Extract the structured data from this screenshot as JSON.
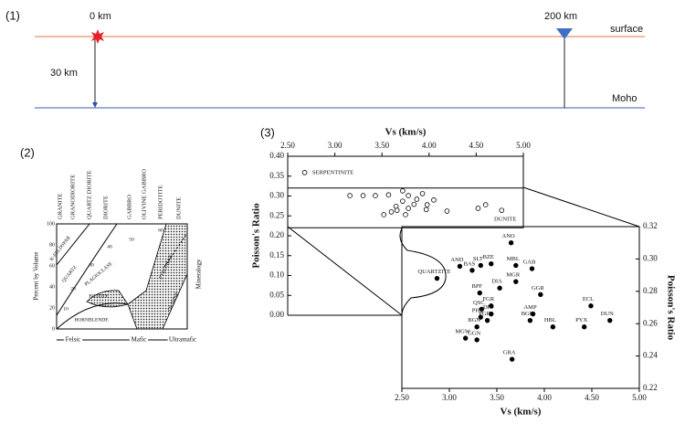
{
  "panel1": {
    "tag": "(1)",
    "source": "0 km",
    "station": "200 km",
    "surface": "surface",
    "depth": "30 km",
    "moho": "Moho"
  },
  "panel2": {
    "tag": "(2)",
    "rocks": [
      "GRANITE",
      "GRANODIORITE",
      "QUARTZ DIORITE",
      "DIORITE",
      "GABBRO",
      "OLIVINE GABBRO",
      "PERIDOTITE",
      "DUNITE"
    ],
    "ylabel": "Percent by Volume",
    "yticks": [
      "100",
      "80",
      "60",
      "40",
      "20",
      "0"
    ],
    "side": "Mineralogy",
    "minerals": [
      "K-FELDSPAR",
      "QUARTZ",
      "PLAGIOCLASE",
      "BIOTITE",
      "HORNBLENDE",
      "PYROXENE",
      "OLIVINE"
    ],
    "contours": [
      "10",
      "20",
      "30",
      "40",
      "50",
      "60"
    ],
    "scale": [
      "Felsic",
      "Mafic",
      "Ultramafic"
    ]
  },
  "panel3": {
    "tag": "(3)"
  },
  "chart_data": [
    {
      "type": "scatter",
      "xlabel": "Vs (km/s)",
      "ylabel": "Poisson's Ratio",
      "xlim": [
        2.5,
        5.0
      ],
      "ylim": [
        0.0,
        0.4
      ],
      "xticks": [
        {
          "value": 2.5,
          "label": "2.50"
        },
        {
          "value": 3.0,
          "label": "3.00"
        },
        {
          "value": 3.5,
          "label": "3.50"
        },
        {
          "value": 4.0,
          "label": "4.00"
        },
        {
          "value": 4.5,
          "label": "4.50"
        },
        {
          "value": 5.0,
          "label": "5.00"
        }
      ],
      "yticks": [
        {
          "value": 0.0,
          "label": "0.00"
        },
        {
          "value": 0.05,
          "label": "0.05"
        },
        {
          "value": 0.1,
          "label": "0.10"
        },
        {
          "value": 0.15,
          "label": "0.15"
        },
        {
          "value": 0.2,
          "label": "0.20"
        },
        {
          "value": 0.25,
          "label": "0.25"
        },
        {
          "value": 0.3,
          "label": "0.30"
        },
        {
          "value": 0.35,
          "label": "0.35"
        },
        {
          "value": 0.4,
          "label": "0.40"
        }
      ],
      "annotations": [
        "SERPENTINITE",
        "DUNITE"
      ],
      "series": [
        {
          "marker": "open",
          "color": "#000000",
          "x": [
            2.68,
            3.16,
            3.3,
            3.43,
            3.57,
            3.72,
            3.78,
            3.87,
            3.93,
            4.05,
            3.72,
            3.65,
            3.6,
            3.66,
            3.78,
            3.84,
            3.97,
            4.19,
            4.52,
            4.6,
            4.77,
            3.52,
            3.75,
            3.98
          ],
          "values": [
            0.359,
            0.301,
            0.301,
            0.301,
            0.303,
            0.313,
            0.301,
            0.292,
            0.306,
            0.29,
            0.287,
            0.274,
            0.26,
            0.264,
            0.269,
            0.279,
            0.266,
            0.262,
            0.269,
            0.278,
            0.264,
            0.253,
            0.253,
            0.278
          ]
        }
      ]
    },
    {
      "type": "scatter",
      "xlabel": "Vs (km/s)",
      "ylabel": "Poisson's Ratio",
      "xlim": [
        2.5,
        5.0
      ],
      "ylim": [
        0.22,
        0.32
      ],
      "xticks": [
        {
          "value": 2.5,
          "label": "2.50"
        },
        {
          "value": 3.0,
          "label": "3.00"
        },
        {
          "value": 3.5,
          "label": "3.50"
        },
        {
          "value": 4.0,
          "label": "4.00"
        },
        {
          "value": 4.5,
          "label": "4.50"
        },
        {
          "value": 5.0,
          "label": "5.00"
        }
      ],
      "yticks": [
        {
          "value": 0.22,
          "label": "0.22"
        },
        {
          "value": 0.24,
          "label": "0.24"
        },
        {
          "value": 0.26,
          "label": "0.26"
        },
        {
          "value": 0.28,
          "label": "0.28"
        },
        {
          "value": 0.3,
          "label": "0.30"
        },
        {
          "value": 0.32,
          "label": "0.32"
        }
      ],
      "series": [
        {
          "marker": "filled",
          "color": "#000000",
          "labels": [
            "ANO",
            "AND",
            "BAS",
            "SLT",
            "BZE",
            "MBL",
            "GAB",
            "MGR",
            "DIA",
            "GGR",
            "BPF",
            "QUARTZITE",
            "QSC",
            "FGR",
            "PHY",
            "DIO",
            "PGR",
            "AMP",
            "BGR",
            "BGN",
            "HBL",
            "PYX",
            "ECL",
            "DUN",
            "MGW",
            "GGN",
            "GRA"
          ],
          "x": [
            3.65,
            3.11,
            3.24,
            3.33,
            3.44,
            3.7,
            3.87,
            3.7,
            3.53,
            3.96,
            3.32,
            2.87,
            3.34,
            3.44,
            3.33,
            3.44,
            3.4,
            3.88,
            3.85,
            3.29,
            4.09,
            4.42,
            4.49,
            4.69,
            3.17,
            3.29,
            3.66
          ],
          "values": [
            0.31,
            0.2955,
            0.293,
            0.296,
            0.297,
            0.296,
            0.294,
            0.286,
            0.282,
            0.278,
            0.279,
            0.288,
            0.269,
            0.271,
            0.264,
            0.266,
            0.262,
            0.266,
            0.262,
            0.258,
            0.258,
            0.258,
            0.271,
            0.262,
            0.251,
            0.25,
            0.238
          ]
        }
      ]
    }
  ]
}
